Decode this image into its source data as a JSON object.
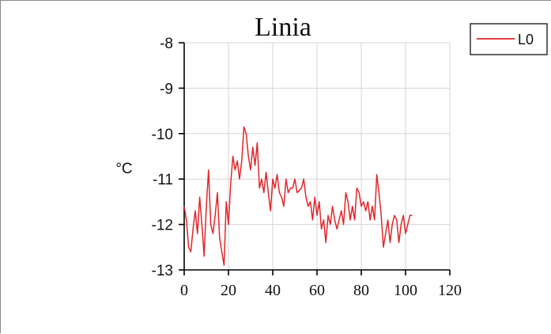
{
  "chart_data": {
    "type": "line",
    "title": "Linia",
    "xlabel": "",
    "ylabel": "°C",
    "xlim": [
      0,
      120
    ],
    "ylim": [
      -13,
      -8
    ],
    "xticks": [
      0,
      20,
      40,
      60,
      80,
      100,
      120
    ],
    "yticks": [
      -8,
      -9,
      -10,
      -11,
      -12,
      -13
    ],
    "grid": true,
    "legend_position": "top-right",
    "series": [
      {
        "name": "L0",
        "color": "#e3262a",
        "x": [
          0,
          1,
          2,
          3,
          4,
          5,
          6,
          7,
          8,
          9,
          10,
          11,
          12,
          13,
          14,
          15,
          16,
          17,
          18,
          19,
          20,
          21,
          22,
          23,
          24,
          25,
          26,
          27,
          28,
          29,
          30,
          31,
          32,
          33,
          34,
          35,
          36,
          37,
          38,
          39,
          40,
          41,
          42,
          43,
          44,
          45,
          46,
          47,
          48,
          49,
          50,
          51,
          52,
          53,
          54,
          55,
          56,
          57,
          58,
          59,
          60,
          61,
          62,
          63,
          64,
          65,
          66,
          67,
          68,
          69,
          70,
          71,
          72,
          73,
          74,
          75,
          76,
          77,
          78,
          79,
          80,
          81,
          82,
          83,
          84,
          85,
          86,
          87,
          88,
          89,
          90,
          91,
          92,
          93,
          94,
          95,
          96,
          97,
          98,
          99,
          100,
          101,
          102,
          103
        ],
        "y": [
          -11.6,
          -11.9,
          -12.5,
          -12.6,
          -12.1,
          -11.7,
          -12.2,
          -11.4,
          -12.0,
          -12.7,
          -11.6,
          -10.8,
          -12.0,
          -12.2,
          -11.8,
          -11.3,
          -12.3,
          -12.6,
          -12.9,
          -11.5,
          -12.0,
          -11.1,
          -10.5,
          -10.8,
          -10.6,
          -11.0,
          -10.6,
          -9.85,
          -10.0,
          -10.5,
          -10.8,
          -10.3,
          -10.7,
          -10.2,
          -11.2,
          -11.0,
          -11.3,
          -10.85,
          -11.3,
          -11.7,
          -11.0,
          -11.2,
          -10.9,
          -11.3,
          -11.4,
          -11.6,
          -11.0,
          -11.3,
          -11.2,
          -11.2,
          -11.0,
          -11.3,
          -11.25,
          -11.2,
          -11.0,
          -11.4,
          -11.6,
          -11.5,
          -11.9,
          -11.4,
          -11.8,
          -11.5,
          -12.1,
          -11.9,
          -12.4,
          -11.8,
          -12.0,
          -11.6,
          -11.9,
          -12.1,
          -11.9,
          -11.7,
          -12.0,
          -11.3,
          -11.5,
          -11.9,
          -11.6,
          -11.9,
          -11.2,
          -11.3,
          -11.6,
          -11.5,
          -11.7,
          -11.5,
          -11.9,
          -11.6,
          -11.9,
          -10.9,
          -11.3,
          -11.8,
          -12.5,
          -12.2,
          -11.9,
          -12.4,
          -12.0,
          -11.8,
          -11.9,
          -12.4,
          -12.0,
          -11.8,
          -12.2,
          -12.0,
          -11.8,
          -11.8
        ]
      }
    ]
  }
}
